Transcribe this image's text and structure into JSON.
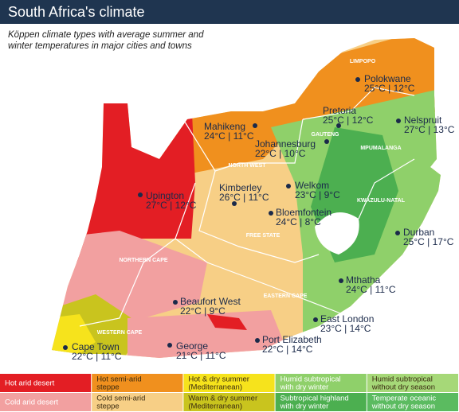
{
  "header": {
    "title": "South Africa's climate",
    "subtitle_lines": [
      "Köppen climate types with average summer and",
      "winter temperatures in major cities and towns"
    ]
  },
  "provinces": [
    "LIMPOPO",
    "GAUTENG",
    "MPUMALANGA",
    "NORTH WEST",
    "KWAZULU-NATAL",
    "FREE STATE",
    "NORTHERN CAPE",
    "EASTERN CAPE",
    "WESTERN CAPE"
  ],
  "cities": [
    {
      "name": "Polokwane",
      "temps": "25°C | 12°C"
    },
    {
      "name": "Pretoria",
      "temps": "25°C | 12°C"
    },
    {
      "name": "Nelspruit",
      "temps": "27°C | 13°C"
    },
    {
      "name": "Mahikeng",
      "temps": "24°C | 11°C"
    },
    {
      "name": "Johannesburg",
      "temps": "22°C | 10°C"
    },
    {
      "name": "Upington",
      "temps": "27°C | 12°C"
    },
    {
      "name": "Kimberley",
      "temps": "26°C | 11°C"
    },
    {
      "name": "Welkom",
      "temps": "23°C | 9°C"
    },
    {
      "name": "Bloemfontein",
      "temps": "24°C | 8°C"
    },
    {
      "name": "Durban",
      "temps": "25°C | 17°C"
    },
    {
      "name": "Mthatha",
      "temps": "24°C | 11°C"
    },
    {
      "name": "Beaufort West",
      "temps": "22°C | 9°C"
    },
    {
      "name": "East London",
      "temps": "23°C | 14°C"
    },
    {
      "name": "Port Elizabeth",
      "temps": "22°C | 14°C"
    },
    {
      "name": "George",
      "temps": "21°C | 11°C"
    },
    {
      "name": "Cape Town",
      "temps": "22°C | 11°C"
    }
  ],
  "legend": [
    {
      "label_lines": [
        "Hot arid desert"
      ],
      "color": "#e31e24"
    },
    {
      "label_lines": [
        "Hot semi-arid",
        "steppe"
      ],
      "color": "#f0901e"
    },
    {
      "label_lines": [
        "Hot & dry summer",
        "(Mediterranean)"
      ],
      "color": "#f6e31c"
    },
    {
      "label_lines": [
        "Humid subtropical",
        "with dry winter"
      ],
      "color": "#8fd06a"
    },
    {
      "label_lines": [
        "Humid subtropical",
        "without dry season"
      ],
      "color": "#a6d878"
    },
    {
      "label_lines": [
        "Cold arid desert"
      ],
      "color": "#f2a0a0"
    },
    {
      "label_lines": [
        "Cold semi-arid",
        "steppe"
      ],
      "color": "#f7cf86"
    },
    {
      "label_lines": [
        "Warm & dry summer",
        "(Mediterranean)"
      ],
      "color": "#c9c41e"
    },
    {
      "label_lines": [
        "Subtropical highland",
        "with dry winter"
      ],
      "color": "#4caf50"
    },
    {
      "label_lines": [
        "Temperate oceanic",
        "without dry season"
      ],
      "color": "#5bbb60"
    }
  ]
}
